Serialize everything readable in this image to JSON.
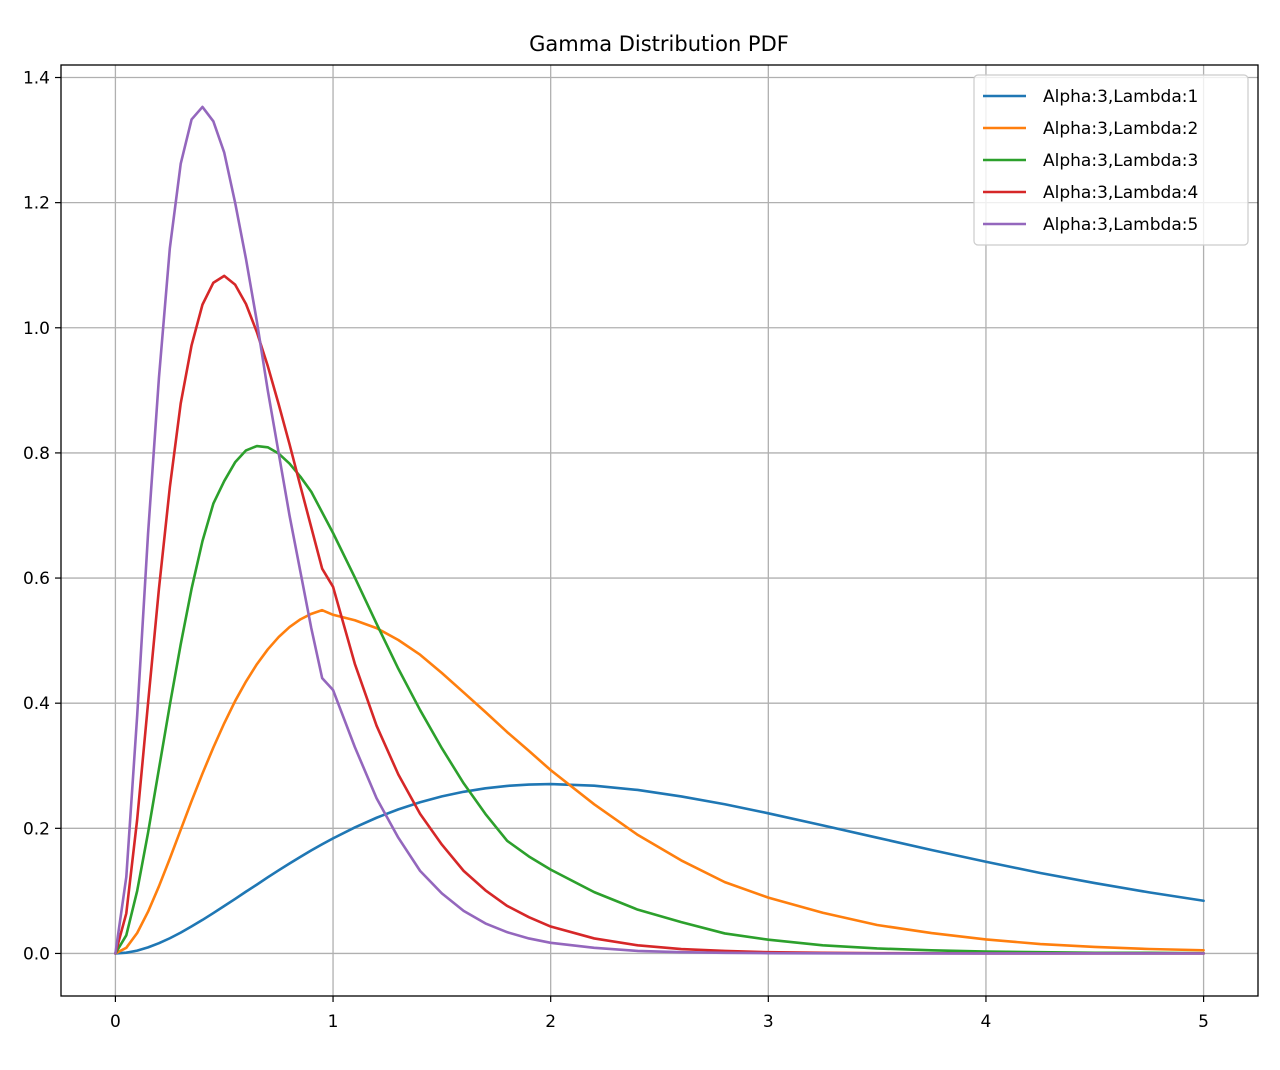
{
  "chart_data": {
    "type": "line",
    "title": "Gamma Distribution PDF",
    "xlabel": "",
    "ylabel": "",
    "xlim": [
      -0.25,
      5.25
    ],
    "ylim": [
      -0.068,
      1.42
    ],
    "grid": true,
    "legend_position": "upper right",
    "x_ticks": [
      0,
      1,
      2,
      3,
      4,
      5
    ],
    "x_tick_labels": [
      "0",
      "1",
      "2",
      "3",
      "4",
      "5"
    ],
    "y_ticks": [
      0.0,
      0.2,
      0.4,
      0.6,
      0.8,
      1.0,
      1.2,
      1.4
    ],
    "y_tick_labels": [
      "0.0",
      "0.2",
      "0.4",
      "0.6",
      "0.8",
      "1.0",
      "1.2",
      "1.4"
    ],
    "x": [
      0,
      0.05,
      0.1,
      0.15,
      0.2,
      0.25,
      0.3,
      0.35,
      0.4,
      0.45,
      0.5,
      0.55,
      0.6,
      0.65,
      0.7,
      0.75,
      0.8,
      0.85,
      0.9,
      0.95,
      1.0,
      1.1,
      1.2,
      1.3,
      1.4,
      1.5,
      1.6,
      1.7,
      1.8,
      1.9,
      2.0,
      2.2,
      2.4,
      2.6,
      2.8,
      3.0,
      3.25,
      3.5,
      3.75,
      4.0,
      4.25,
      4.5,
      4.75,
      5.0
    ],
    "series": [
      {
        "name": "Alpha:3,Lambda:1",
        "color": "#1f77b4",
        "values": [
          0,
          0.0012,
          0.0045,
          0.0097,
          0.0164,
          0.0243,
          0.0333,
          0.0432,
          0.0536,
          0.0646,
          0.0758,
          0.0871,
          0.0988,
          0.11,
          0.1217,
          0.1329,
          0.1438,
          0.1543,
          0.1647,
          0.1745,
          0.1839,
          0.2014,
          0.2169,
          0.2303,
          0.2416,
          0.251,
          0.2584,
          0.264,
          0.2678,
          0.27,
          0.2707,
          0.2681,
          0.2613,
          0.251,
          0.2385,
          0.224,
          0.2047,
          0.185,
          0.1654,
          0.1465,
          0.1286,
          0.1125,
          0.0976,
          0.0842
        ]
      },
      {
        "name": "Alpha:3,Lambda:2",
        "color": "#ff7f0e",
        "values": [
          0,
          0.009,
          0.0327,
          0.0667,
          0.1073,
          0.1516,
          0.1976,
          0.2435,
          0.2875,
          0.3292,
          0.3679,
          0.4034,
          0.4346,
          0.4623,
          0.4859,
          0.5057,
          0.5216,
          0.534,
          0.5428,
          0.5487,
          0.5413,
          0.5325,
          0.52,
          0.501,
          0.4775,
          0.4482,
          0.4172,
          0.3859,
          0.3538,
          0.3237,
          0.293,
          0.2384,
          0.1895,
          0.1487,
          0.114,
          0.0892,
          0.065,
          0.0455,
          0.0326,
          0.0224,
          0.015,
          0.0104,
          0.0071,
          0.0051
        ]
      },
      {
        "name": "Alpha:3,Lambda:3",
        "color": "#2ca02c",
        "values": [
          0,
          0.029,
          0.1,
          0.193,
          0.295,
          0.397,
          0.494,
          0.583,
          0.659,
          0.719,
          0.755,
          0.785,
          0.804,
          0.811,
          0.809,
          0.799,
          0.783,
          0.762,
          0.738,
          0.705,
          0.672,
          0.601,
          0.527,
          0.455,
          0.389,
          0.328,
          0.272,
          0.223,
          0.18,
          0.155,
          0.134,
          0.098,
          0.07,
          0.05,
          0.032,
          0.022,
          0.013,
          0.008,
          0.005,
          0.003,
          0.002,
          0.001,
          0.001,
          0.0005
        ]
      },
      {
        "name": "Alpha:3,Lambda:4",
        "color": "#d62728",
        "values": [
          0,
          0.064,
          0.214,
          0.4,
          0.583,
          0.745,
          0.879,
          0.972,
          1.037,
          1.072,
          1.083,
          1.069,
          1.038,
          0.993,
          0.939,
          0.878,
          0.814,
          0.747,
          0.681,
          0.615,
          0.586,
          0.463,
          0.364,
          0.286,
          0.223,
          0.174,
          0.132,
          0.101,
          0.076,
          0.058,
          0.043,
          0.024,
          0.013,
          0.007,
          0.004,
          0.002,
          0.001,
          0.0005,
          0.0002,
          0.0001,
          0,
          0,
          0,
          0
        ]
      },
      {
        "name": "Alpha:3,Lambda:5",
        "color": "#9467bd",
        "values": [
          0,
          0.122,
          0.38,
          0.671,
          0.92,
          1.127,
          1.262,
          1.333,
          1.353,
          1.33,
          1.28,
          1.2,
          1.11,
          1.01,
          0.9,
          0.8,
          0.7,
          0.61,
          0.52,
          0.44,
          0.421,
          0.33,
          0.248,
          0.185,
          0.132,
          0.096,
          0.068,
          0.048,
          0.034,
          0.024,
          0.017,
          0.009,
          0.004,
          0.002,
          0.001,
          0.0005,
          0.0002,
          0.0001,
          0,
          0,
          0,
          0,
          0,
          0
        ]
      }
    ]
  }
}
